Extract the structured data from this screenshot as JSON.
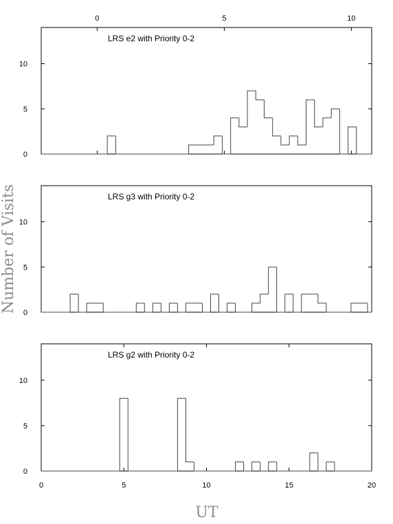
{
  "chart_data": {
    "type": "histogram",
    "ylabel": "Number of Visits",
    "xlabel": "UT",
    "panels": [
      {
        "title": "LRS e2 with Priority 0-2",
        "xlim": [
          -2.2,
          10.8
        ],
        "ylim": [
          0,
          14
        ],
        "xticks": [
          0,
          5,
          10
        ],
        "xtick_labels": [
          "0",
          "5",
          "10"
        ],
        "xtick_position": "top",
        "yticks": [
          0,
          5,
          10
        ],
        "ytick_labels": [
          "0",
          "5",
          "10"
        ],
        "bin_width": 0.33,
        "bins": [
          {
            "x0": 0.4,
            "value": 2
          },
          {
            "x0": 0.73,
            "value": 0
          },
          {
            "x0": 3.6,
            "value": 1
          },
          {
            "x0": 3.93,
            "value": 1
          },
          {
            "x0": 4.26,
            "value": 1
          },
          {
            "x0": 4.59,
            "value": 2
          },
          {
            "x0": 4.92,
            "value": 0
          },
          {
            "x0": 5.25,
            "value": 4
          },
          {
            "x0": 5.58,
            "value": 3
          },
          {
            "x0": 5.91,
            "value": 7
          },
          {
            "x0": 6.24,
            "value": 6
          },
          {
            "x0": 6.57,
            "value": 4
          },
          {
            "x0": 6.9,
            "value": 2
          },
          {
            "x0": 7.23,
            "value": 1
          },
          {
            "x0": 7.56,
            "value": 2
          },
          {
            "x0": 7.89,
            "value": 1
          },
          {
            "x0": 8.22,
            "value": 6
          },
          {
            "x0": 8.55,
            "value": 3
          },
          {
            "x0": 8.88,
            "value": 4
          },
          {
            "x0": 9.21,
            "value": 5
          },
          {
            "x0": 9.54,
            "value": 0
          },
          {
            "x0": 9.87,
            "value": 3
          },
          {
            "x0": 10.2,
            "value": 0
          }
        ]
      },
      {
        "title": "LRS g3 with Priority 0-2",
        "xlim": [
          0,
          20
        ],
        "ylim": [
          0,
          14
        ],
        "xticks": [],
        "xtick_labels": [],
        "xtick_position": "none",
        "yticks": [
          0,
          5,
          10
        ],
        "ytick_labels": [
          "0",
          "5",
          "10"
        ],
        "bin_width": 0.5,
        "bins": [
          {
            "x0": 1.75,
            "value": 2
          },
          {
            "x0": 2.25,
            "value": 0
          },
          {
            "x0": 2.75,
            "value": 1
          },
          {
            "x0": 3.25,
            "value": 1
          },
          {
            "x0": 3.75,
            "value": 0
          },
          {
            "x0": 5.75,
            "value": 1
          },
          {
            "x0": 6.25,
            "value": 0
          },
          {
            "x0": 6.75,
            "value": 1
          },
          {
            "x0": 7.25,
            "value": 0
          },
          {
            "x0": 7.75,
            "value": 1
          },
          {
            "x0": 8.25,
            "value": 0
          },
          {
            "x0": 8.75,
            "value": 1
          },
          {
            "x0": 9.25,
            "value": 1
          },
          {
            "x0": 9.75,
            "value": 0
          },
          {
            "x0": 10.25,
            "value": 2
          },
          {
            "x0": 10.75,
            "value": 0
          },
          {
            "x0": 11.25,
            "value": 1
          },
          {
            "x0": 11.75,
            "value": 0
          },
          {
            "x0": 12.75,
            "value": 1
          },
          {
            "x0": 13.25,
            "value": 2
          },
          {
            "x0": 13.75,
            "value": 5
          },
          {
            "x0": 14.25,
            "value": 0
          },
          {
            "x0": 14.75,
            "value": 2
          },
          {
            "x0": 15.25,
            "value": 0
          },
          {
            "x0": 15.75,
            "value": 2
          },
          {
            "x0": 16.25,
            "value": 2
          },
          {
            "x0": 16.75,
            "value": 1
          },
          {
            "x0": 17.25,
            "value": 0
          },
          {
            "x0": 18.75,
            "value": 1
          },
          {
            "x0": 19.25,
            "value": 1
          }
        ]
      },
      {
        "title": "LRS g2 with Priority 0-2",
        "xlim": [
          0,
          20
        ],
        "ylim": [
          0,
          14
        ],
        "xticks": [
          0,
          5,
          10,
          15,
          20
        ],
        "xtick_labels": [
          "0",
          "5",
          "10",
          "15",
          "20"
        ],
        "xtick_position": "bottom",
        "yticks": [
          0,
          5,
          10
        ],
        "ytick_labels": [
          "0",
          "5",
          "10"
        ],
        "bin_width": 0.5,
        "bins": [
          {
            "x0": 4.75,
            "value": 8
          },
          {
            "x0": 5.25,
            "value": 0
          },
          {
            "x0": 8.25,
            "value": 8
          },
          {
            "x0": 8.75,
            "value": 1
          },
          {
            "x0": 9.25,
            "value": 0
          },
          {
            "x0": 11.75,
            "value": 1
          },
          {
            "x0": 12.25,
            "value": 0
          },
          {
            "x0": 12.75,
            "value": 1
          },
          {
            "x0": 13.25,
            "value": 0
          },
          {
            "x0": 13.75,
            "value": 1
          },
          {
            "x0": 14.25,
            "value": 0
          },
          {
            "x0": 16.25,
            "value": 2
          },
          {
            "x0": 16.75,
            "value": 0
          },
          {
            "x0": 17.25,
            "value": 1
          },
          {
            "x0": 17.75,
            "value": 0
          }
        ]
      }
    ]
  }
}
